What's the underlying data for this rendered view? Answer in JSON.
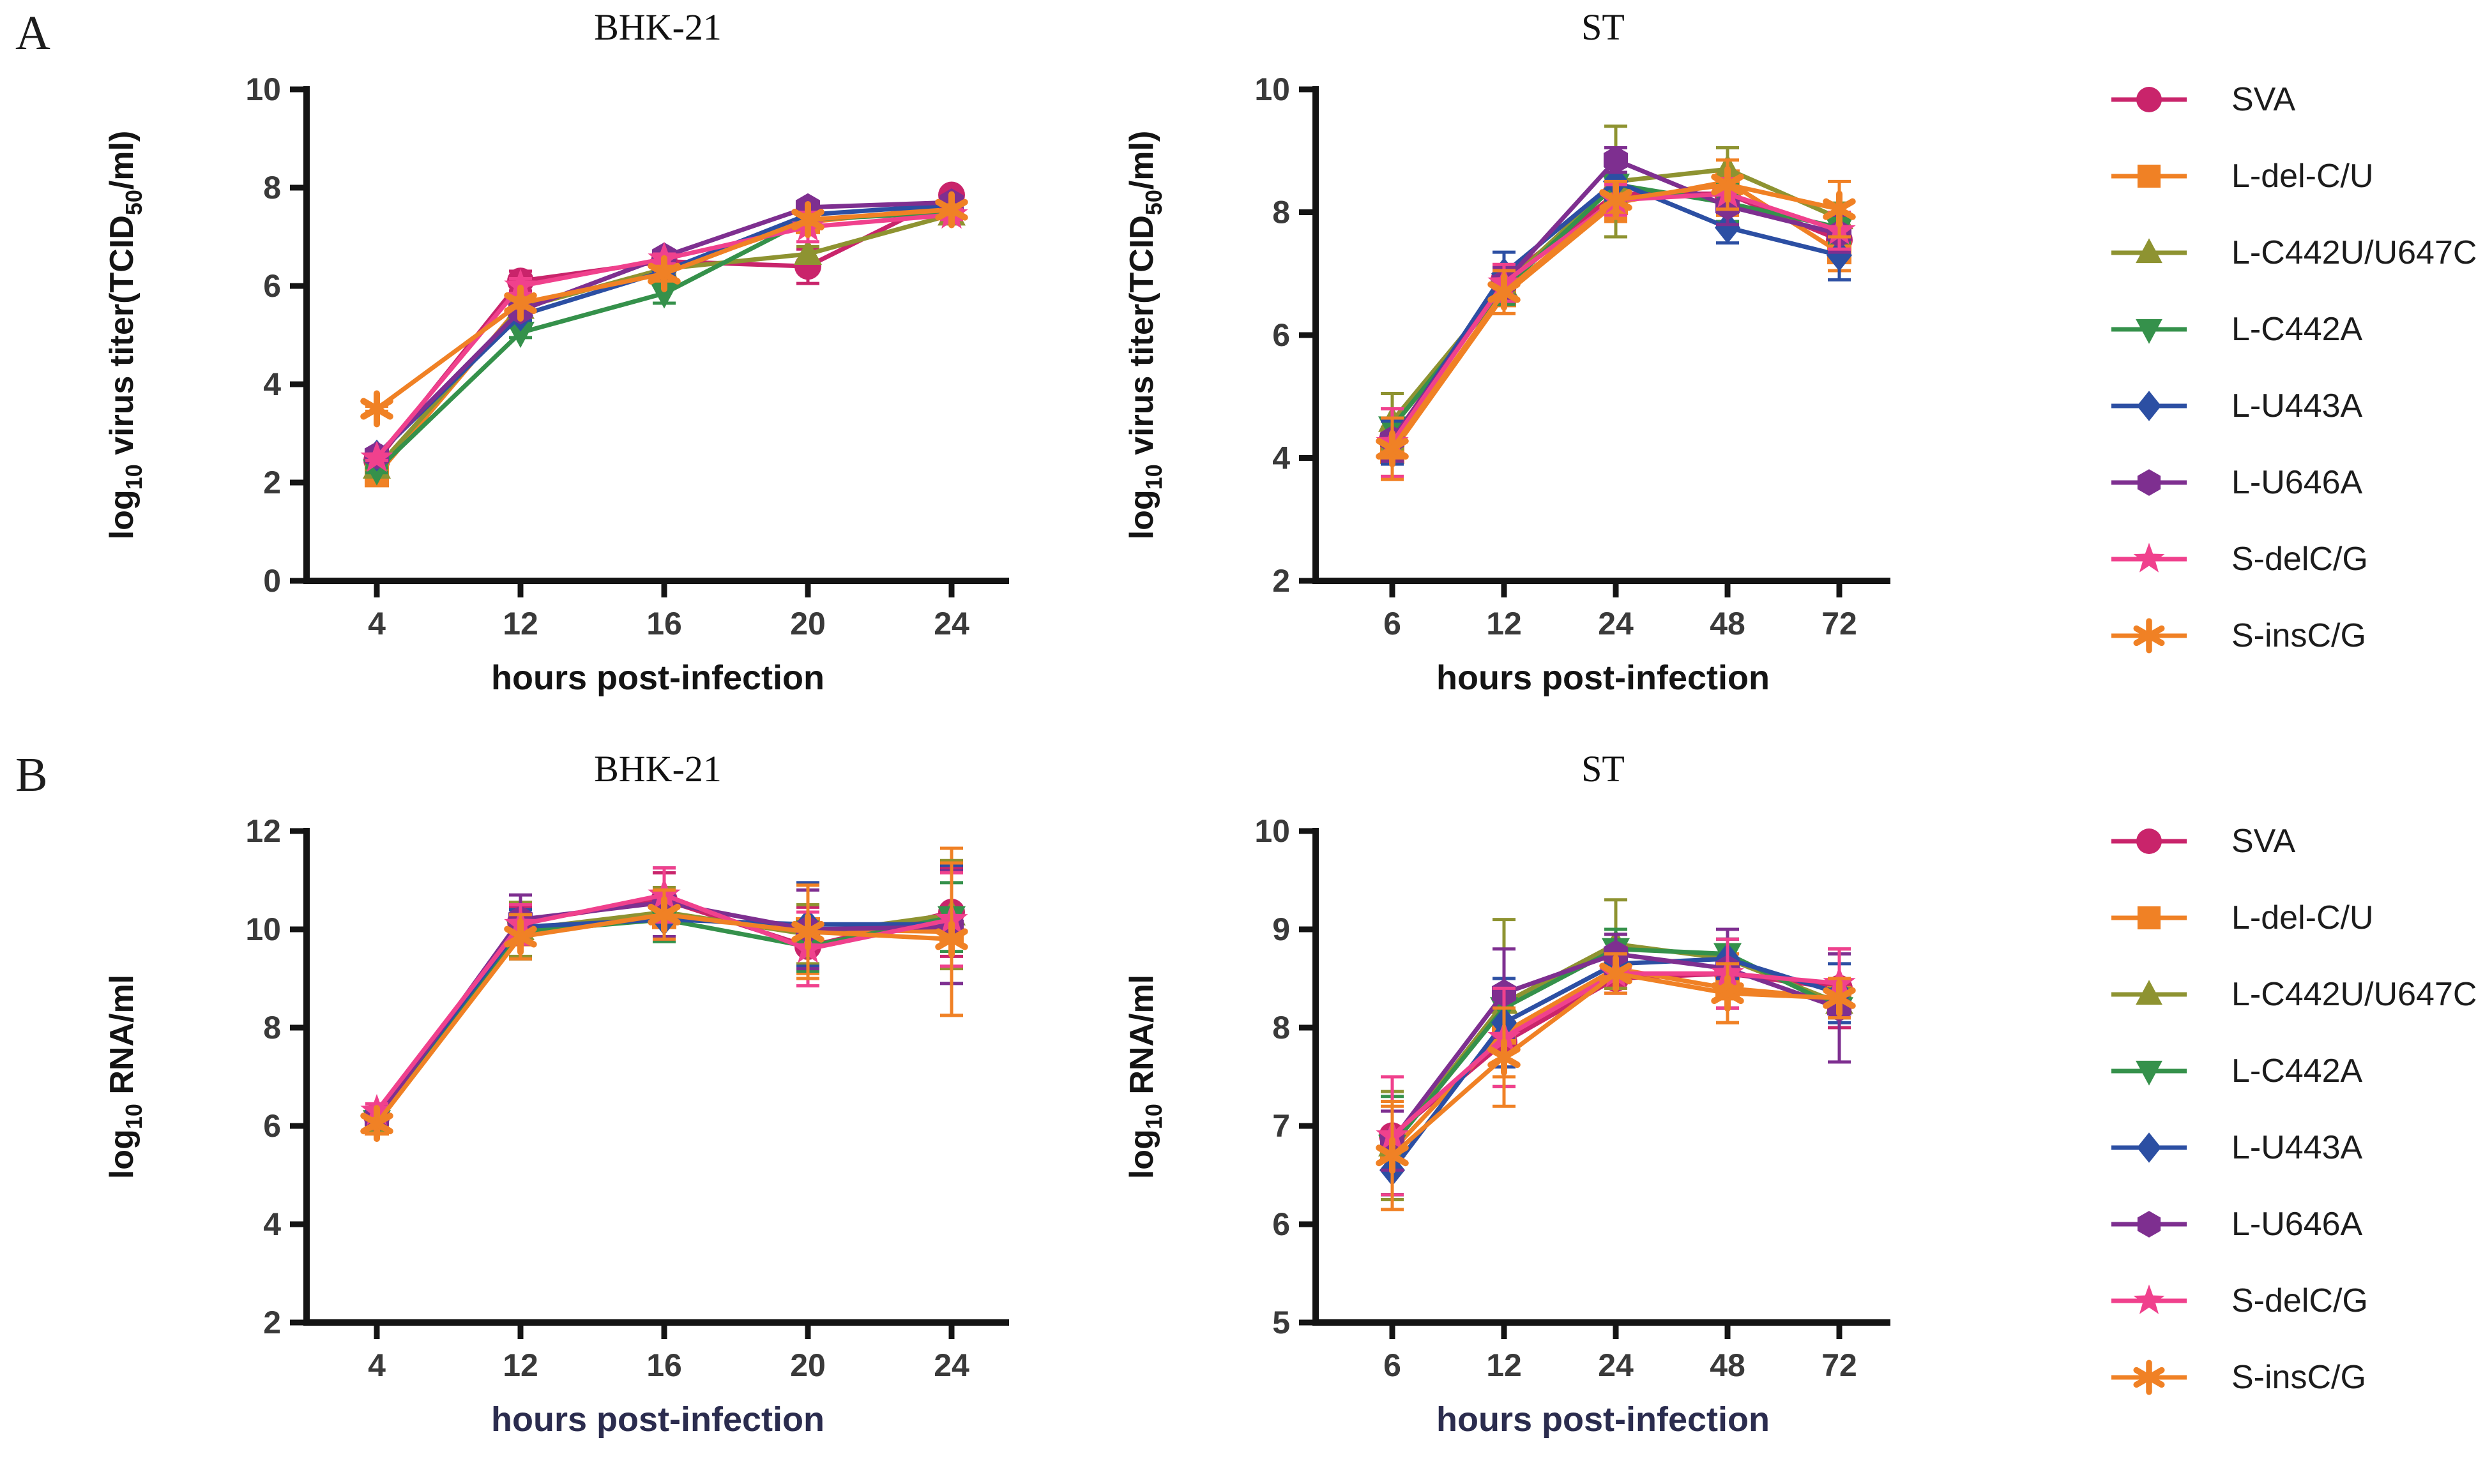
{
  "panels": [
    {
      "letter": "A"
    },
    {
      "letter": "B"
    }
  ],
  "legend": {
    "position": "right",
    "entries": [
      "SVA",
      "L-del-C/U",
      "L-C442U/U647C",
      "L-C442A",
      "L-U443A",
      "L-U646A",
      "S-delC/G",
      "S-insC/G"
    ]
  },
  "series_styles": {
    "SVA": {
      "color": "#C9246B",
      "marker": "circle"
    },
    "L-del-C/U": {
      "color": "#F08125",
      "marker": "square"
    },
    "L-C442U/U647C": {
      "color": "#8E9331",
      "marker": "triangle-up"
    },
    "L-C442A": {
      "color": "#35914B",
      "marker": "triangle-down"
    },
    "L-U443A": {
      "color": "#2C4FA3",
      "marker": "diamond"
    },
    "L-U646A": {
      "color": "#7E2F90",
      "marker": "hexagon"
    },
    "S-delC/G": {
      "color": "#F0418D",
      "marker": "star"
    },
    "S-insC/G": {
      "color": "#F08125",
      "marker": "asterisk"
    }
  },
  "chart_data": [
    {
      "id": "panelA-BHK21",
      "panel": "A",
      "type": "line",
      "title": "BHK-21",
      "xlabel": "hours post-infection",
      "xlabel_color": "#141414",
      "ylabel": "log10 virus titer(TCID50/ml)",
      "ylabel_parts": [
        {
          "t": "log"
        },
        {
          "t": "10",
          "sub": true
        },
        {
          "t": " virus titer(TCID"
        },
        {
          "t": "50",
          "sub": true
        },
        {
          "t": "/ml)"
        }
      ],
      "categories": [
        "4",
        "12",
        "16",
        "20",
        "24"
      ],
      "ylim": [
        0,
        10
      ],
      "yticks": [
        0,
        2,
        4,
        6,
        8,
        10
      ],
      "grid": false,
      "series": [
        {
          "name": "SVA",
          "values": [
            2.45,
            6.1,
            6.5,
            6.4,
            7.85
          ],
          "errors": [
            0.1,
            0.2,
            0.1,
            0.35,
            0.1
          ]
        },
        {
          "name": "L-del-C/U",
          "values": [
            2.15,
            5.6,
            6.3,
            7.3,
            7.6
          ],
          "errors": [
            0.05,
            0.1,
            0.15,
            0.1,
            0.1
          ]
        },
        {
          "name": "L-C442U/U647C",
          "values": [
            2.3,
            5.55,
            6.35,
            6.65,
            7.45
          ],
          "errors": [
            0.05,
            0.1,
            0.1,
            0.15,
            0.1
          ]
        },
        {
          "name": "L-C442A",
          "values": [
            2.25,
            5.05,
            5.85,
            7.35,
            7.5
          ],
          "errors": [
            0.05,
            0.1,
            0.2,
            0.1,
            0.15
          ]
        },
        {
          "name": "L-U443A",
          "values": [
            2.55,
            5.4,
            6.3,
            7.45,
            7.65
          ],
          "errors": [
            0.05,
            0.1,
            0.1,
            0.1,
            0.1
          ]
        },
        {
          "name": "L-U646A",
          "values": [
            2.55,
            5.5,
            6.6,
            7.6,
            7.7
          ],
          "errors": [
            0.05,
            0.1,
            0.1,
            0.1,
            0.1
          ]
        },
        {
          "name": "S-delC/G",
          "values": [
            2.5,
            6.0,
            6.55,
            7.2,
            7.45
          ],
          "errors": [
            0.05,
            0.15,
            0.1,
            0.3,
            0.1
          ]
        },
        {
          "name": "S-insC/G",
          "values": [
            3.5,
            5.65,
            6.25,
            7.35,
            7.55
          ],
          "errors": [
            0.05,
            0.1,
            0.15,
            0.1,
            0.1
          ]
        }
      ]
    },
    {
      "id": "panelA-ST",
      "panel": "A",
      "type": "line",
      "title": "ST",
      "xlabel": "hours post-infection",
      "xlabel_color": "#141414",
      "ylabel": "log10 virus titer(TCID50/ml)",
      "ylabel_parts": [
        {
          "t": "log"
        },
        {
          "t": "10",
          "sub": true
        },
        {
          "t": " virus titer(TCID"
        },
        {
          "t": "50",
          "sub": true
        },
        {
          "t": "/ml)"
        }
      ],
      "categories": [
        "6",
        "12",
        "24",
        "48",
        "72"
      ],
      "ylim": [
        2,
        10
      ],
      "yticks": [
        2,
        4,
        6,
        8,
        10
      ],
      "grid": false,
      "series": [
        {
          "name": "SVA",
          "values": [
            4.3,
            6.9,
            8.3,
            8.3,
            7.55
          ],
          "errors": [
            0.3,
            0.25,
            0.3,
            0.3,
            0.35
          ]
        },
        {
          "name": "L-del-C/U",
          "values": [
            4.1,
            6.65,
            8.15,
            8.5,
            7.35
          ],
          "errors": [
            0.4,
            0.3,
            0.3,
            0.55,
            0.3
          ]
        },
        {
          "name": "L-C442U/U647C",
          "values": [
            4.6,
            6.8,
            8.5,
            8.7,
            7.9
          ],
          "errors": [
            0.45,
            0.3,
            0.9,
            0.35,
            0.25
          ]
        },
        {
          "name": "L-C442A",
          "values": [
            4.5,
            6.75,
            8.45,
            8.15,
            7.75
          ],
          "errors": [
            0.3,
            0.25,
            0.3,
            0.3,
            0.25
          ]
        },
        {
          "name": "L-U443A",
          "values": [
            4.25,
            7.0,
            8.5,
            7.75,
            7.3
          ],
          "errors": [
            0.35,
            0.35,
            0.3,
            0.25,
            0.4
          ]
        },
        {
          "name": "L-U646A",
          "values": [
            4.3,
            6.85,
            8.85,
            8.1,
            7.65
          ],
          "errors": [
            0.35,
            0.25,
            0.2,
            0.3,
            0.3
          ]
        },
        {
          "name": "S-delC/G",
          "values": [
            4.25,
            6.85,
            8.2,
            8.3,
            7.7
          ],
          "errors": [
            0.55,
            0.3,
            0.25,
            0.25,
            0.3
          ]
        },
        {
          "name": "S-insC/G",
          "values": [
            4.15,
            6.7,
            8.2,
            8.45,
            8.05
          ],
          "errors": [
            0.5,
            0.35,
            0.3,
            0.4,
            0.45
          ]
        }
      ]
    },
    {
      "id": "panelB-BHK21",
      "panel": "B",
      "type": "line",
      "title": "BHK-21",
      "xlabel": "hours post-infection",
      "xlabel_color": "#2b2c4e",
      "ylabel": "log10 RNA/ml",
      "ylabel_parts": [
        {
          "t": "log"
        },
        {
          "t": "10",
          "sub": true
        },
        {
          "t": " RNA/ml"
        }
      ],
      "categories": [
        "4",
        "12",
        "16",
        "20",
        "24"
      ],
      "ylim": [
        2,
        12
      ],
      "yticks": [
        2,
        4,
        6,
        8,
        10,
        12
      ],
      "grid": false,
      "series": [
        {
          "name": "SVA",
          "values": [
            6.2,
            10.15,
            10.6,
            9.65,
            10.35
          ],
          "errors": [
            0.15,
            0.3,
            0.55,
            0.8,
            0.9
          ]
        },
        {
          "name": "L-del-C/U",
          "values": [
            6.05,
            9.9,
            10.25,
            10.0,
            9.95
          ],
          "errors": [
            0.1,
            0.5,
            0.4,
            0.9,
            1.7
          ]
        },
        {
          "name": "L-C442U/U647C",
          "values": [
            6.1,
            10.0,
            10.35,
            9.9,
            10.3
          ],
          "errors": [
            0.1,
            0.55,
            0.5,
            0.6,
            1.1
          ]
        },
        {
          "name": "L-C442A",
          "values": [
            6.1,
            9.95,
            10.2,
            9.65,
            10.25
          ],
          "errors": [
            0.1,
            0.55,
            0.45,
            0.5,
            0.7
          ]
        },
        {
          "name": "L-U443A",
          "values": [
            6.2,
            10.05,
            10.2,
            10.1,
            10.1
          ],
          "errors": [
            0.1,
            0.35,
            0.4,
            0.85,
            1.2
          ]
        },
        {
          "name": "L-U646A",
          "values": [
            6.15,
            10.2,
            10.55,
            10.0,
            10.05
          ],
          "errors": [
            0.1,
            0.5,
            0.7,
            0.8,
            1.15
          ]
        },
        {
          "name": "S-delC/G",
          "values": [
            6.3,
            10.1,
            10.7,
            9.6,
            10.2
          ],
          "errors": [
            0.15,
            0.4,
            0.55,
            0.75,
            0.95
          ]
        },
        {
          "name": "S-insC/G",
          "values": [
            6.05,
            9.85,
            10.3,
            9.95,
            9.8
          ],
          "errors": [
            0.1,
            0.45,
            0.5,
            0.95,
            1.55
          ]
        }
      ]
    },
    {
      "id": "panelB-ST",
      "panel": "B",
      "type": "line",
      "title": "ST",
      "xlabel": "hours post-infection",
      "xlabel_color": "#2b2c4e",
      "ylabel": "log10 RNA/ml",
      "ylabel_parts": [
        {
          "t": "log"
        },
        {
          "t": "10",
          "sub": true
        },
        {
          "t": " RNA/ml"
        }
      ],
      "categories": [
        "6",
        "12",
        "24",
        "48",
        "72"
      ],
      "ylim": [
        5,
        10
      ],
      "yticks": [
        5,
        6,
        7,
        8,
        9,
        10
      ],
      "grid": false,
      "series": [
        {
          "name": "SVA",
          "values": [
            6.9,
            7.85,
            8.5,
            8.55,
            8.4
          ],
          "errors": [
            0.6,
            0.45,
            0.15,
            0.35,
            0.4
          ]
        },
        {
          "name": "L-del-C/U",
          "values": [
            6.75,
            7.95,
            8.6,
            8.4,
            8.3
          ],
          "errors": [
            0.45,
            0.45,
            0.2,
            0.35,
            0.2
          ]
        },
        {
          "name": "L-C442U/U647C",
          "values": [
            6.8,
            8.25,
            8.85,
            8.7,
            8.25
          ],
          "errors": [
            0.55,
            0.85,
            0.45,
            0.2,
            0.15
          ]
        },
        {
          "name": "L-C442A",
          "values": [
            6.8,
            8.2,
            8.8,
            8.75,
            8.2
          ],
          "errors": [
            0.5,
            0.3,
            0.2,
            0.15,
            0.1
          ]
        },
        {
          "name": "L-U443A",
          "values": [
            6.55,
            8.05,
            8.65,
            8.7,
            8.35
          ],
          "errors": [
            0.25,
            0.45,
            0.15,
            0.2,
            0.3
          ]
        },
        {
          "name": "L-U646A",
          "values": [
            6.85,
            8.35,
            8.75,
            8.6,
            8.2
          ],
          "errors": [
            0.3,
            0.45,
            0.2,
            0.4,
            0.55
          ]
        },
        {
          "name": "S-delC/G",
          "values": [
            6.9,
            7.9,
            8.55,
            8.55,
            8.45
          ],
          "errors": [
            0.6,
            0.5,
            0.2,
            0.35,
            0.35
          ]
        },
        {
          "name": "S-insC/G",
          "values": [
            6.7,
            7.7,
            8.55,
            8.35,
            8.3
          ],
          "errors": [
            0.55,
            0.5,
            0.2,
            0.3,
            0.2
          ]
        }
      ]
    }
  ]
}
